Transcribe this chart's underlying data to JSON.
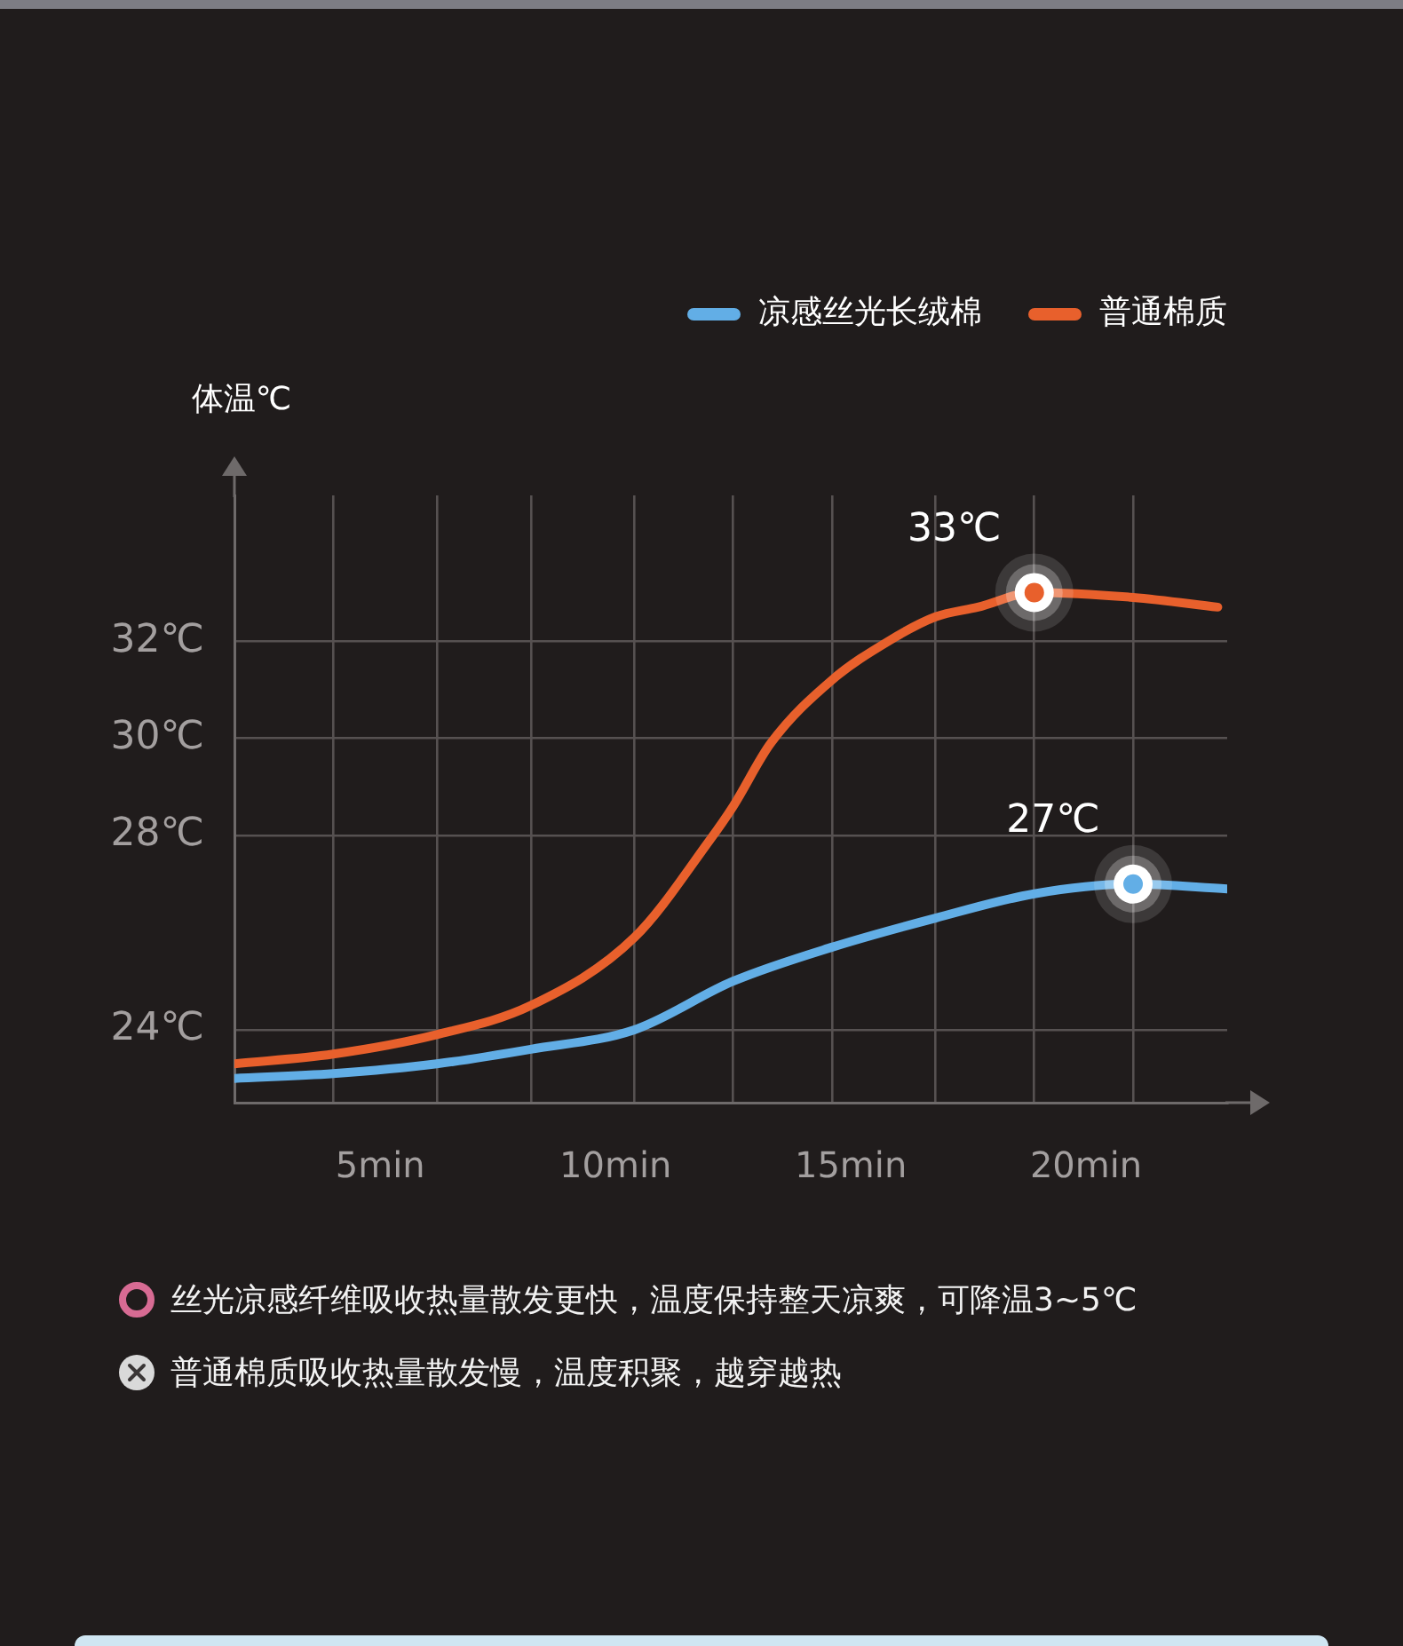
{
  "chart_data": {
    "type": "line",
    "ylabel": "体温℃",
    "series": [
      {
        "name": "凉感丝光长绒棉",
        "color": "#62aee6",
        "x": [
          1.9,
          4,
          6.2,
          8.2,
          10.4,
          12.5,
          14.6,
          16.8,
          18.9,
          21,
          23
        ],
        "values": [
          23,
          23.1,
          23.3,
          23.6,
          24,
          25,
          25.7,
          26.3,
          26.8,
          27,
          26.9
        ]
      },
      {
        "name": "普通棉质",
        "color": "#e8602c",
        "x": [
          1.9,
          4,
          6.2,
          8.2,
          10.4,
          12,
          12.5,
          13.3,
          14.6,
          15.8,
          16.8,
          17.7,
          18.9,
          21,
          22.8
        ],
        "values": [
          23.3,
          23.5,
          23.9,
          24.5,
          25.9,
          27.9,
          28.6,
          29.9,
          31.2,
          32,
          32.5,
          32.7,
          33,
          32.9,
          32.7
        ]
      }
    ],
    "xlim": [
      1.9,
      23
    ],
    "xticks": [
      {
        "value": 4,
        "label": null
      },
      {
        "value": 5,
        "label": "5min"
      },
      {
        "value": 6.2,
        "label": null
      },
      {
        "value": 8.2,
        "label": null
      },
      {
        "value": 10,
        "label": "10min"
      },
      {
        "value": 10.4,
        "label": null
      },
      {
        "value": 12.5,
        "label": null
      },
      {
        "value": 14.6,
        "label": null
      },
      {
        "value": 15,
        "label": "15min"
      },
      {
        "value": 16.8,
        "label": null
      },
      {
        "value": 18.9,
        "label": null
      },
      {
        "value": 20,
        "label": "20min"
      },
      {
        "value": 21,
        "label": null
      }
    ],
    "ylim": [
      22.5,
      35
    ],
    "yticks": [
      {
        "value": 24,
        "label": "24℃"
      },
      {
        "value": 28,
        "label": "28℃"
      },
      {
        "value": 30,
        "label": "30℃"
      },
      {
        "value": 32,
        "label": "32℃"
      }
    ],
    "grid": true,
    "legend": "top right",
    "marker": "none",
    "annotations": [
      {
        "text": "33℃",
        "x": 18.9,
        "y": 33
      },
      {
        "text": "27℃",
        "x": 21,
        "y": 27
      },
      "丝光凉感纤维吸收热量散发更快，温度保持整天凉爽，可降温3~5℃",
      "普通棉质吸收热量散发慢，温度积聚，越穿越热"
    ]
  }
}
